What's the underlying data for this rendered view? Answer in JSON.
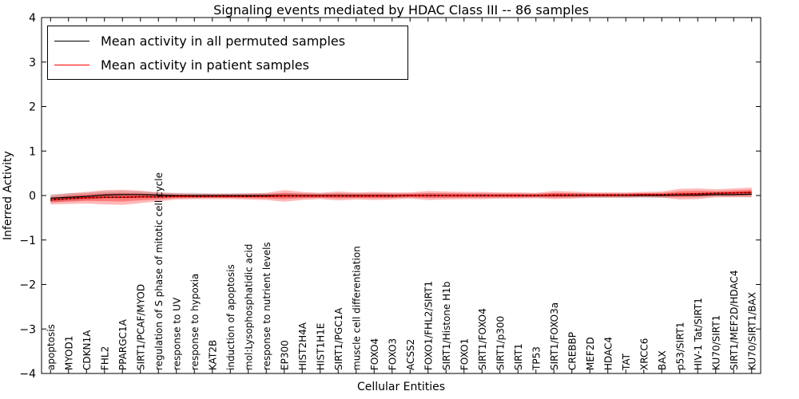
{
  "title": "Signaling events mediated by HDAC Class III -- 86 samples",
  "axes": {
    "x_label": "Cellular Entities",
    "y_label": "Inferred Activity",
    "y_ticks": [
      "4",
      "3",
      "2",
      "1",
      "0",
      "−1",
      "−2",
      "−3",
      "−4"
    ]
  },
  "legend": {
    "items": [
      {
        "label": "Mean activity in all permuted samples",
        "color": "#000000"
      },
      {
        "label": "Mean activity in patient samples",
        "color": "#ff0000"
      }
    ]
  },
  "colors": {
    "permuted_line": "#000000",
    "patient_line": "#ff0000",
    "patient_band": "#ff0000",
    "permuted_band": "#000000",
    "axis": "#000000"
  },
  "chart_data": {
    "type": "line",
    "title": "Signaling events mediated by HDAC Class III -- 86 samples",
    "xlabel": "Cellular Entities",
    "ylabel": "Inferred Activity",
    "ylim": [
      -4,
      4
    ],
    "grid": false,
    "legend_position": "upper left",
    "x_tick_rotation": 90,
    "categories": [
      "apoptosis",
      "MYOD1",
      "CDKN1A",
      "FHL2",
      "PPARGC1A",
      "SIRT1/PCAF/MYOD",
      "regulation of S phase of mitotic cell cycle",
      "response to UV",
      "response to hypoxia",
      "KAT2B",
      "induction of apoptosis",
      "mol:Lysophosphatidic acid",
      "response to nutrient levels",
      "EP300",
      "HIST2H4A",
      "HIST1H1E",
      "SIRT1/PGC1A",
      "muscle cell differentiation",
      "FOXO4",
      "FOXO3",
      "ACSS2",
      "FOXO1/FHL2/SIRT1",
      "SIRT1/Histone H1b",
      "FOXO1",
      "SIRT1/FOXO4",
      "SIRT1/p300",
      "SIRT1",
      "TP53",
      "SIRT1/FOXO3a",
      "CREBBP",
      "MEF2D",
      "HDAC4",
      "TAT",
      "XRCC6",
      "BAX",
      "p53/SIRT1",
      "HIV-1 Tat/SIRT1",
      "KU70/SIRT1",
      "SIRT1/MEF2D/HDAC4",
      "KU70/SIRT1/BAX"
    ],
    "series": [
      {
        "name": "Mean activity in all permuted samples",
        "color": "#000000",
        "values": [
          -0.06,
          -0.04,
          -0.02,
          0.01,
          0.02,
          0.02,
          0.01,
          0,
          0,
          0,
          0,
          0,
          0,
          0,
          0,
          0,
          0,
          0,
          0,
          0,
          0,
          0,
          0,
          0,
          0,
          0,
          0,
          0,
          0,
          0,
          0,
          0,
          0,
          0,
          0,
          0.01,
          0.01,
          0.02,
          0.02,
          0.03
        ],
        "std": [
          0.09,
          0.09,
          0.08,
          0.08,
          0.08,
          0.07,
          0.06,
          0.06,
          0.06,
          0.05,
          0.05,
          0.05,
          0.05,
          0.05,
          0.05,
          0.05,
          0.05,
          0.05,
          0.05,
          0.05,
          0.05,
          0.05,
          0.05,
          0.05,
          0.05,
          0.05,
          0.05,
          0.05,
          0.05,
          0.05,
          0.05,
          0.05,
          0.05,
          0.05,
          0.05,
          0.05,
          0.05,
          0.05,
          0.05,
          0.06
        ]
      },
      {
        "name": "Mean activity in patient samples",
        "color": "#ff0000",
        "values": [
          -0.1,
          -0.07,
          -0.05,
          -0.04,
          -0.04,
          -0.03,
          -0.03,
          -0.02,
          -0.02,
          -0.02,
          -0.02,
          -0.02,
          -0.02,
          -0.01,
          -0.01,
          -0.01,
          -0.01,
          -0.01,
          -0.01,
          -0.01,
          0,
          0,
          0,
          0,
          0,
          0,
          0,
          0,
          0.01,
          0.01,
          0.01,
          0.01,
          0.01,
          0.02,
          0.02,
          0.03,
          0.04,
          0.05,
          0.06,
          0.07
        ],
        "std": [
          0.1,
          0.12,
          0.13,
          0.16,
          0.17,
          0.14,
          0.1,
          0.07,
          0.06,
          0.06,
          0.06,
          0.07,
          0.08,
          0.13,
          0.09,
          0.07,
          0.1,
          0.08,
          0.09,
          0.08,
          0.07,
          0.1,
          0.09,
          0.08,
          0.08,
          0.07,
          0.07,
          0.06,
          0.09,
          0.08,
          0.06,
          0.06,
          0.06,
          0.06,
          0.07,
          0.12,
          0.12,
          0.09,
          0.1,
          0.11
        ]
      }
    ]
  }
}
